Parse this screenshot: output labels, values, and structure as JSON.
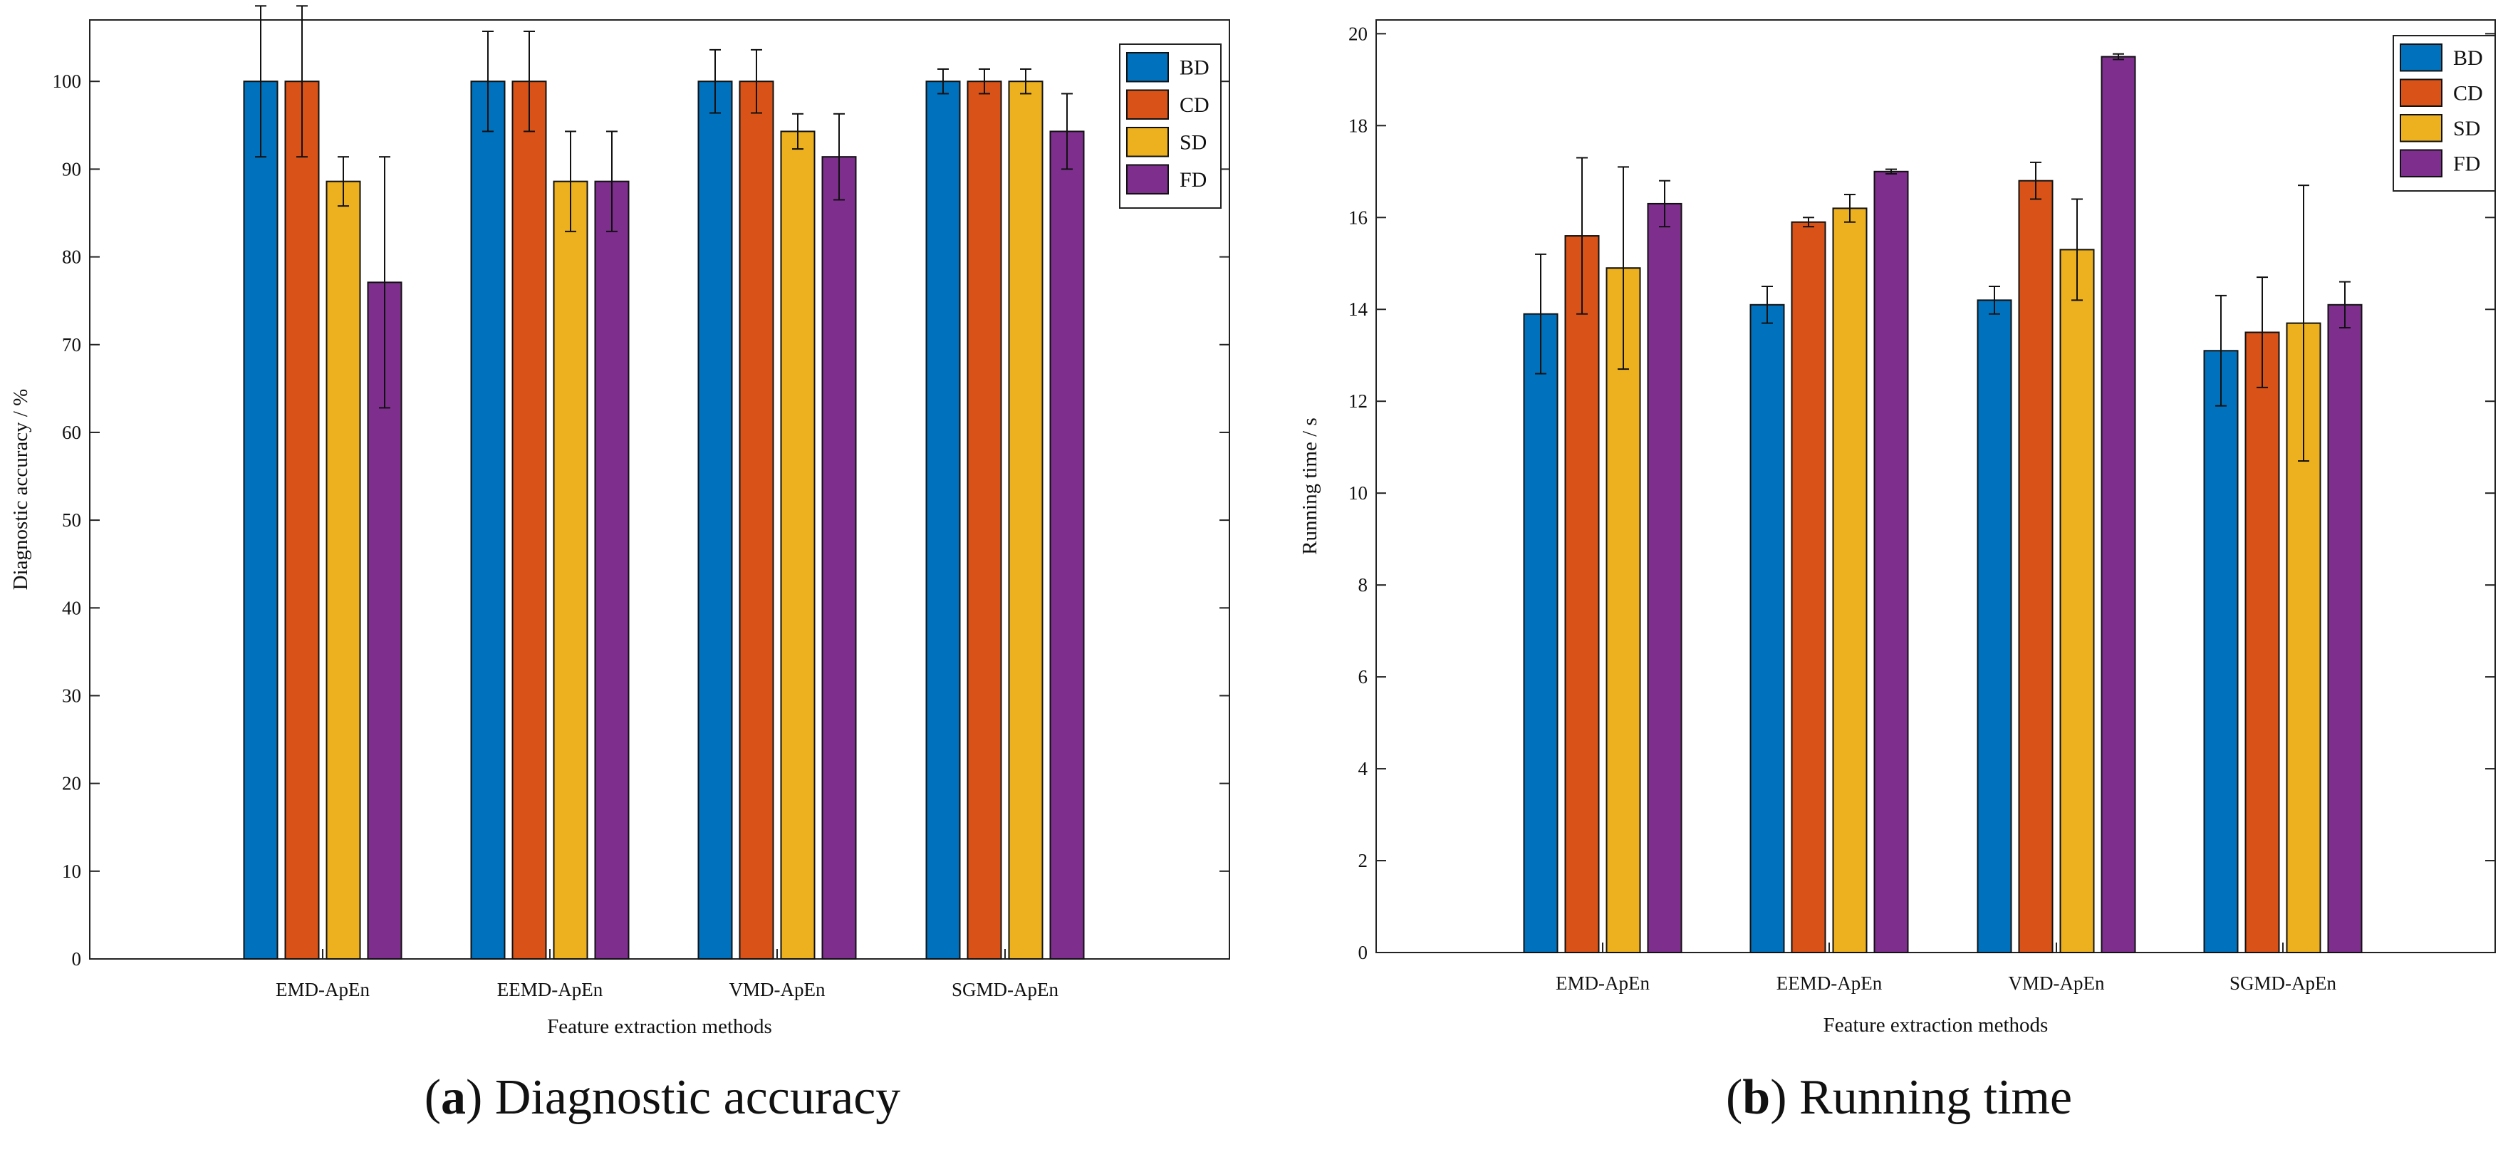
{
  "chart_data": [
    {
      "type": "bar",
      "title": "",
      "xlabel": "Feature extraction methods",
      "ylabel": "Diagnostic accuracy / %",
      "ylim": [
        0,
        107
      ],
      "yticks": [
        0,
        10,
        20,
        30,
        40,
        50,
        60,
        70,
        80,
        90,
        100
      ],
      "grid": false,
      "legend_position": "top-right",
      "categories": [
        "EMD-ApEn",
        "EEMD-ApEn",
        "VMD-ApEn",
        "SGMD-ApEn"
      ],
      "series": [
        {
          "name": "BD",
          "color": "#0072bd",
          "values": [
            100,
            100,
            100,
            100
          ],
          "errors": [
            8.6,
            5.7,
            3.6,
            1.4
          ]
        },
        {
          "name": "CD",
          "color": "#d95319",
          "values": [
            100,
            100,
            100,
            100
          ],
          "errors": [
            8.6,
            5.7,
            3.6,
            1.4
          ]
        },
        {
          "name": "SD",
          "color": "#edb120",
          "values": [
            88.6,
            88.6,
            94.3,
            100
          ],
          "errors": [
            2.8,
            5.7,
            2.0,
            1.4
          ]
        },
        {
          "name": "FD",
          "color": "#7e2f8e",
          "values": [
            77.1,
            88.6,
            91.4,
            94.3
          ],
          "errors": [
            14.3,
            5.7,
            4.9,
            4.3
          ]
        }
      ],
      "caption": {
        "letter": "a",
        "text": "Diagnostic accuracy"
      }
    },
    {
      "type": "bar",
      "title": "",
      "xlabel": "Feature extraction methods",
      "ylabel": "Running time / s",
      "ylim": [
        0,
        20.3
      ],
      "yticks": [
        0,
        2,
        4,
        6,
        8,
        10,
        12,
        14,
        16,
        18,
        20
      ],
      "grid": false,
      "legend_position": "top-right",
      "categories": [
        "EMD-ApEn",
        "EEMD-ApEn",
        "VMD-ApEn",
        "SGMD-ApEn"
      ],
      "series": [
        {
          "name": "BD",
          "color": "#0072bd",
          "values": [
            13.9,
            14.1,
            14.2,
            13.1
          ],
          "errors": [
            1.3,
            0.4,
            0.3,
            1.2
          ]
        },
        {
          "name": "CD",
          "color": "#d95319",
          "values": [
            15.6,
            15.9,
            16.8,
            13.5
          ],
          "errors": [
            1.7,
            0.1,
            0.4,
            1.2
          ]
        },
        {
          "name": "SD",
          "color": "#edb120",
          "values": [
            14.9,
            16.2,
            15.3,
            13.7
          ],
          "errors": [
            2.2,
            0.3,
            1.1,
            3.0
          ]
        },
        {
          "name": "FD",
          "color": "#7e2f8e",
          "values": [
            16.3,
            17.0,
            19.5,
            14.1
          ],
          "errors": [
            0.5,
            0.05,
            0.06,
            0.5
          ]
        }
      ],
      "caption": {
        "letter": "b",
        "text": "Running time"
      }
    }
  ]
}
